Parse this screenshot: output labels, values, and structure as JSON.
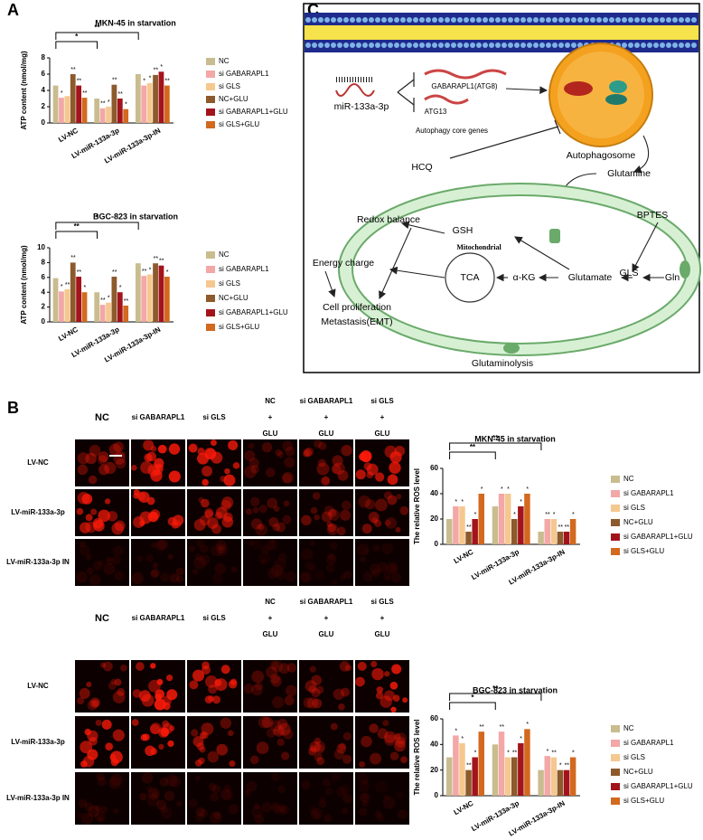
{
  "panel_labels": [
    "A",
    "B",
    "C"
  ],
  "chart_data": [
    {
      "type": "bar",
      "title": "MKN-45 in starvation",
      "y_label": "ATP content (nmol/mg)",
      "categories": [
        "LV-NC",
        "LV-miR-133a-3p",
        "LV-miR-133a-3p-IN"
      ],
      "ylim": [
        0,
        8
      ],
      "yticks": [
        0,
        2,
        4,
        6,
        8
      ],
      "series": [
        {
          "name": "NC",
          "color": "#c9bc8e",
          "values": [
            4.6,
            3.0,
            6.0
          ],
          "stars": [
            null,
            null,
            null
          ]
        },
        {
          "name": "si GABARAPL1",
          "color": "#f3a7a7",
          "values": [
            3.1,
            1.8,
            4.6
          ],
          "stars": [
            "*",
            "**",
            "*"
          ]
        },
        {
          "name": "si GLS",
          "color": "#f5c890",
          "values": [
            3.3,
            2.0,
            4.9
          ],
          "stars": [
            null,
            "*",
            "*"
          ]
        },
        {
          "name": "NC+GLU",
          "color": "#8c5a2c",
          "values": [
            6.0,
            4.7,
            5.9
          ],
          "stars": [
            "**",
            "**",
            "**"
          ]
        },
        {
          "name": "si GABARAPL1+GLU",
          "color": "#a3131b",
          "values": [
            4.6,
            3.0,
            6.3
          ],
          "stars": [
            "**",
            "**",
            "*"
          ]
        },
        {
          "name": "si GLS+GLU",
          "color": "#d2691f",
          "values": [
            3.1,
            1.7,
            4.6
          ],
          "stars": [
            "**",
            "*",
            "**"
          ]
        }
      ],
      "brackets": [
        {
          "from": 0,
          "to": 2,
          "label": "**"
        },
        {
          "from": 0,
          "to": 1,
          "label": "*"
        }
      ]
    },
    {
      "type": "bar",
      "title": "BGC-823 in starvation",
      "y_label": "ATP content (nmol/mg)",
      "categories": [
        "LV-NC",
        "LV-miR-133a-3p",
        "LV-miR-133a-3p-IN"
      ],
      "ylim": [
        0,
        10
      ],
      "yticks": [
        0,
        2,
        4,
        6,
        8,
        10
      ],
      "series": [
        {
          "name": "NC",
          "color": "#c9bc8e",
          "values": [
            5.9,
            4.0,
            7.9
          ],
          "stars": [
            null,
            null,
            null
          ]
        },
        {
          "name": "si GABARAPL1",
          "color": "#f3a7a7",
          "values": [
            4.1,
            2.3,
            6.2
          ],
          "stars": [
            "*",
            "**",
            "**"
          ]
        },
        {
          "name": "si GLS",
          "color": "#f5c890",
          "values": [
            4.4,
            2.6,
            6.4
          ],
          "stars": [
            "**",
            "*",
            "*"
          ]
        },
        {
          "name": "NC+GLU",
          "color": "#8c5a2c",
          "values": [
            8.0,
            6.1,
            7.9
          ],
          "stars": [
            "**",
            "**",
            "**"
          ]
        },
        {
          "name": "si GABARAPL1+GLU",
          "color": "#a3131b",
          "values": [
            6.1,
            4.0,
            7.6
          ],
          "stars": [
            "**",
            "*",
            "**"
          ]
        },
        {
          "name": "si GLS+GLU",
          "color": "#d2691f",
          "values": [
            4.0,
            2.2,
            6.1
          ],
          "stars": [
            "*",
            "**",
            "*"
          ]
        }
      ],
      "brackets": [
        {
          "from": 0,
          "to": 2,
          "label": "*"
        },
        {
          "from": 0,
          "to": 1,
          "label": "**"
        }
      ]
    },
    {
      "type": "bar",
      "title": "MKN-45 in starvation",
      "y_label": "The relative ROS level",
      "categories": [
        "LV-NC",
        "LV-miR-133a-3p",
        "LV-miR-133a-3p-IN"
      ],
      "ylim": [
        0,
        60
      ],
      "yticks": [
        0,
        20,
        40,
        60
      ],
      "series": [
        {
          "name": "NC",
          "color": "#c9bc8e",
          "values": [
            20,
            30,
            10
          ],
          "stars": [
            null,
            null,
            null
          ]
        },
        {
          "name": "si GABARAPL1",
          "color": "#f3a7a7",
          "values": [
            30,
            40,
            20
          ],
          "stars": [
            "*",
            "*",
            "**"
          ]
        },
        {
          "name": "si GLS",
          "color": "#f5c890",
          "values": [
            30,
            40,
            20
          ],
          "stars": [
            "*",
            "*",
            "*"
          ]
        },
        {
          "name": "NC+GLU",
          "color": "#8c5a2c",
          "values": [
            10,
            20,
            10
          ],
          "stars": [
            "**",
            "*",
            "**"
          ]
        },
        {
          "name": "si GABARAPL1+GLU",
          "color": "#a3131b",
          "values": [
            20,
            30,
            10
          ],
          "stars": [
            "*",
            "*",
            "**"
          ]
        },
        {
          "name": "si GLS+GLU",
          "color": "#d2691f",
          "values": [
            40,
            40,
            20
          ],
          "stars": [
            "*",
            "*",
            "*"
          ]
        }
      ],
      "brackets": [
        {
          "from": 0,
          "to": 2,
          "label": "**"
        },
        {
          "from": 0,
          "to": 1,
          "label": "**"
        }
      ]
    },
    {
      "type": "bar",
      "title": "BGC-823 in starvation",
      "y_label": "The relative ROS level",
      "categories": [
        "LV-NC",
        "LV-miR-133a-3p",
        "LV-miR-133a-3p-IN"
      ],
      "ylim": [
        0,
        60
      ],
      "yticks": [
        0,
        20,
        40,
        60
      ],
      "series": [
        {
          "name": "NC",
          "color": "#c9bc8e",
          "values": [
            30,
            40,
            20
          ],
          "stars": [
            null,
            null,
            null
          ]
        },
        {
          "name": "si GABARAPL1",
          "color": "#f3a7a7",
          "values": [
            47,
            50,
            31
          ],
          "stars": [
            "*",
            "**",
            "*"
          ]
        },
        {
          "name": "si GLS",
          "color": "#f5c890",
          "values": [
            41,
            30,
            30
          ],
          "stars": [
            "*",
            "*",
            "**"
          ]
        },
        {
          "name": "NC+GLU",
          "color": "#8c5a2c",
          "values": [
            20,
            30,
            20
          ],
          "stars": [
            "**",
            "**",
            "*"
          ]
        },
        {
          "name": "si GABARAPL1+GLU",
          "color": "#a3131b",
          "values": [
            30,
            41,
            20
          ],
          "stars": [
            "*",
            "*",
            "**"
          ]
        },
        {
          "name": "si GLS+GLU",
          "color": "#d2691f",
          "values": [
            50,
            52,
            30
          ],
          "stars": [
            "**",
            "*",
            "*"
          ]
        }
      ],
      "brackets": [
        {
          "from": 0,
          "to": 2,
          "label": "**"
        },
        {
          "from": 0,
          "to": 1,
          "label": "*"
        }
      ]
    }
  ],
  "microscopy": [
    {
      "columns": [
        {
          "lines": [
            "NC"
          ]
        },
        {
          "lines": [
            "si GABARAPL1"
          ]
        },
        {
          "lines": [
            "si GLS"
          ]
        },
        {
          "lines": [
            "NC",
            "+",
            "GLU"
          ]
        },
        {
          "lines": [
            "si GABARAPL1",
            "+",
            "GLU"
          ]
        },
        {
          "lines": [
            "si GLS",
            "+",
            "GLU"
          ]
        }
      ],
      "rows": [
        "LV-NC",
        "LV-miR-133a-3p",
        "LV-miR-133a-3p IN"
      ]
    },
    {
      "columns": [
        {
          "lines": [
            "NC"
          ]
        },
        {
          "lines": [
            "si GABARAPL1"
          ]
        },
        {
          "lines": [
            "si GLS"
          ]
        },
        {
          "lines": [
            "NC",
            "+",
            "GLU"
          ]
        },
        {
          "lines": [
            "si GABARAPL1",
            "+",
            "GLU"
          ]
        },
        {
          "lines": [
            "si GLS",
            "+",
            "GLU"
          ]
        }
      ],
      "rows": [
        "LV-NC",
        "LV-miR-133a-3p",
        "LV-miR-133a-3p IN"
      ]
    }
  ],
  "diagram": {
    "mirna": "miR-133a-3p",
    "gene1": "GABARAPL1(ATG8)",
    "gene2": "ATG13",
    "genes_caption": "Autophagy core genes",
    "autophagosome": "Autophagosome",
    "hcq": "HCQ",
    "glutamine": "Glutamine",
    "redox": "Redox balance",
    "gsh": "GSH",
    "bptes": "BPTES",
    "mito": "Mitochondrial",
    "energy": "Energy charge",
    "tca": "TCA",
    "akg": "α-KG",
    "glutamate": "Glutamate",
    "gls": "GLS",
    "gln": "Gln",
    "prolif": "Cell proliferation",
    "emt": "Metastasis(EMT)",
    "caption": "Glutaminolysis"
  }
}
